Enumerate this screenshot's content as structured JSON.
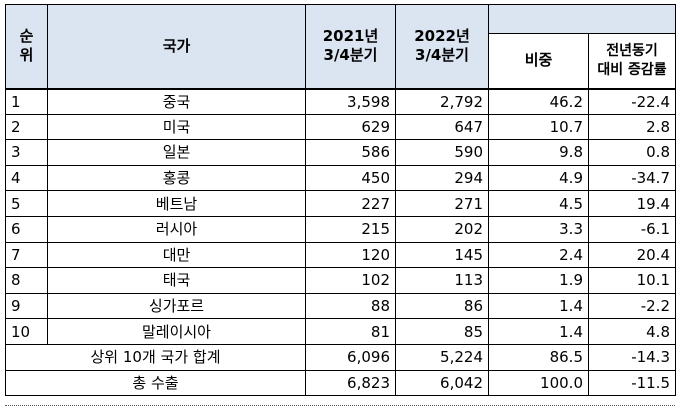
{
  "headers": {
    "rank": "순\n위",
    "country": "국가",
    "q2021": "2021년\n3/4분기",
    "q2022": "2022년\n3/4분기",
    "ratio": "비중",
    "change": "전년동기\n대비 증감률"
  },
  "rows": [
    {
      "rank": "1",
      "country": "중국",
      "q2021": "3,598",
      "q2022": "2,792",
      "ratio": "46.2",
      "change": "-22.4"
    },
    {
      "rank": "2",
      "country": "미국",
      "q2021": "629",
      "q2022": "647",
      "ratio": "10.7",
      "change": "2.8"
    },
    {
      "rank": "3",
      "country": "일본",
      "q2021": "586",
      "q2022": "590",
      "ratio": "9.8",
      "change": "0.8"
    },
    {
      "rank": "4",
      "country": "홍콩",
      "q2021": "450",
      "q2022": "294",
      "ratio": "4.9",
      "change": "-34.7"
    },
    {
      "rank": "5",
      "country": "베트남",
      "q2021": "227",
      "q2022": "271",
      "ratio": "4.5",
      "change": "19.4"
    },
    {
      "rank": "6",
      "country": "러시아",
      "q2021": "215",
      "q2022": "202",
      "ratio": "3.3",
      "change": "-6.1"
    },
    {
      "rank": "7",
      "country": "대만",
      "q2021": "120",
      "q2022": "145",
      "ratio": "2.4",
      "change": "20.4"
    },
    {
      "rank": "8",
      "country": "태국",
      "q2021": "102",
      "q2022": "113",
      "ratio": "1.9",
      "change": "10.1"
    },
    {
      "rank": "9",
      "country": "싱가포르",
      "q2021": "88",
      "q2022": "86",
      "ratio": "1.4",
      "change": "-2.2"
    },
    {
      "rank": "10",
      "country": "말레이시아",
      "q2021": "81",
      "q2022": "85",
      "ratio": "1.4",
      "change": "4.8"
    }
  ],
  "totals": [
    {
      "label": "상위 10개 국가 합계",
      "q2021": "6,096",
      "q2022": "5,224",
      "ratio": "86.5",
      "change": "-14.3"
    },
    {
      "label": "총 수출",
      "q2021": "6,823",
      "q2022": "6,042",
      "ratio": "100.0",
      "change": "-11.5"
    }
  ]
}
